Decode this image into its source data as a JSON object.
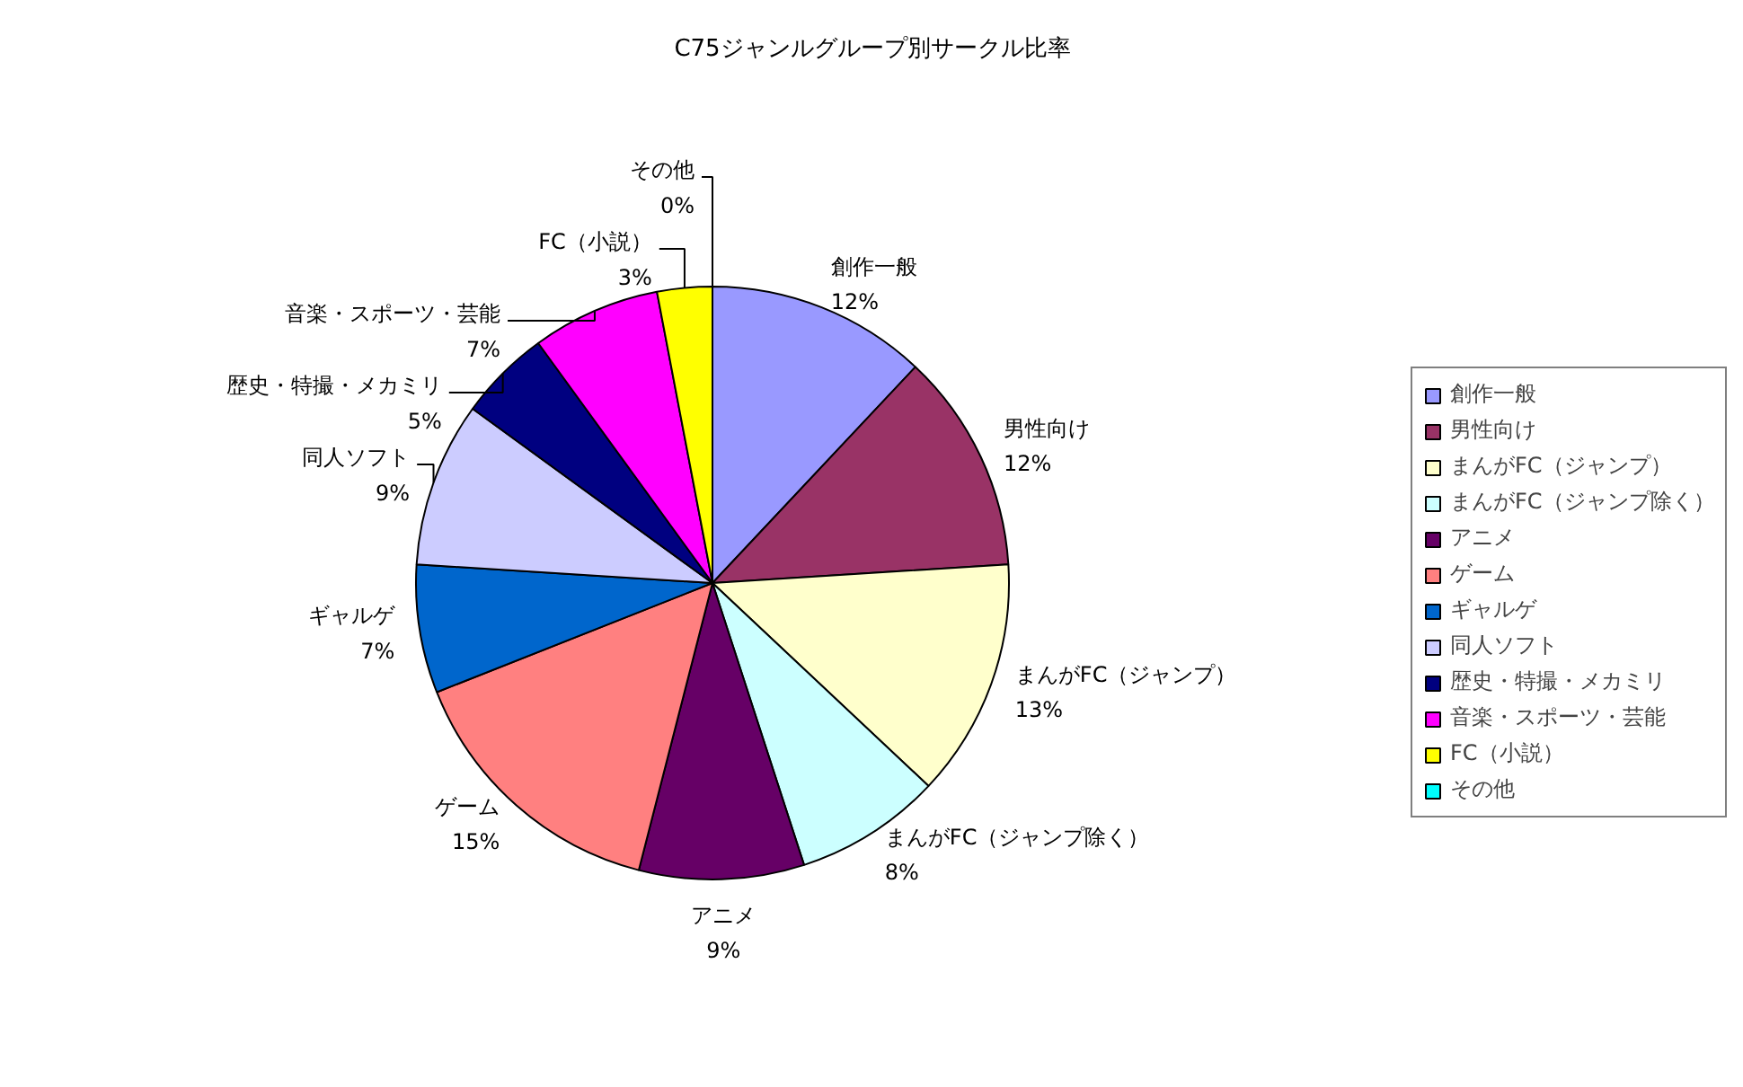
{
  "chart_data": {
    "type": "pie",
    "title": "C75ジャンルグループ別サークル比率",
    "categories": [
      "創作一般",
      "男性向け",
      "まんがFC（ジャンプ）",
      "まんがFC（ジャンプ除く）",
      "アニメ",
      "ゲーム",
      "ギャルゲ",
      "同人ソフト",
      "歴史・特撮・メカミリ",
      "音楽・スポーツ・芸能",
      "FC（小説）",
      "その他"
    ],
    "values": [
      12,
      12,
      13,
      8,
      9,
      15,
      7,
      9,
      5,
      7,
      3,
      0
    ],
    "value_labels": [
      "12%",
      "12%",
      "13%",
      "8%",
      "9%",
      "15%",
      "7%",
      "9%",
      "5%",
      "7%",
      "3%",
      "0%"
    ],
    "colors": [
      "#9999ff",
      "#993366",
      "#ffffcc",
      "#ccffff",
      "#660066",
      "#ff8080",
      "#0066cc",
      "#ccccff",
      "#000080",
      "#ff00ff",
      "#ffff00",
      "#00ffff"
    ],
    "legend": "right"
  }
}
